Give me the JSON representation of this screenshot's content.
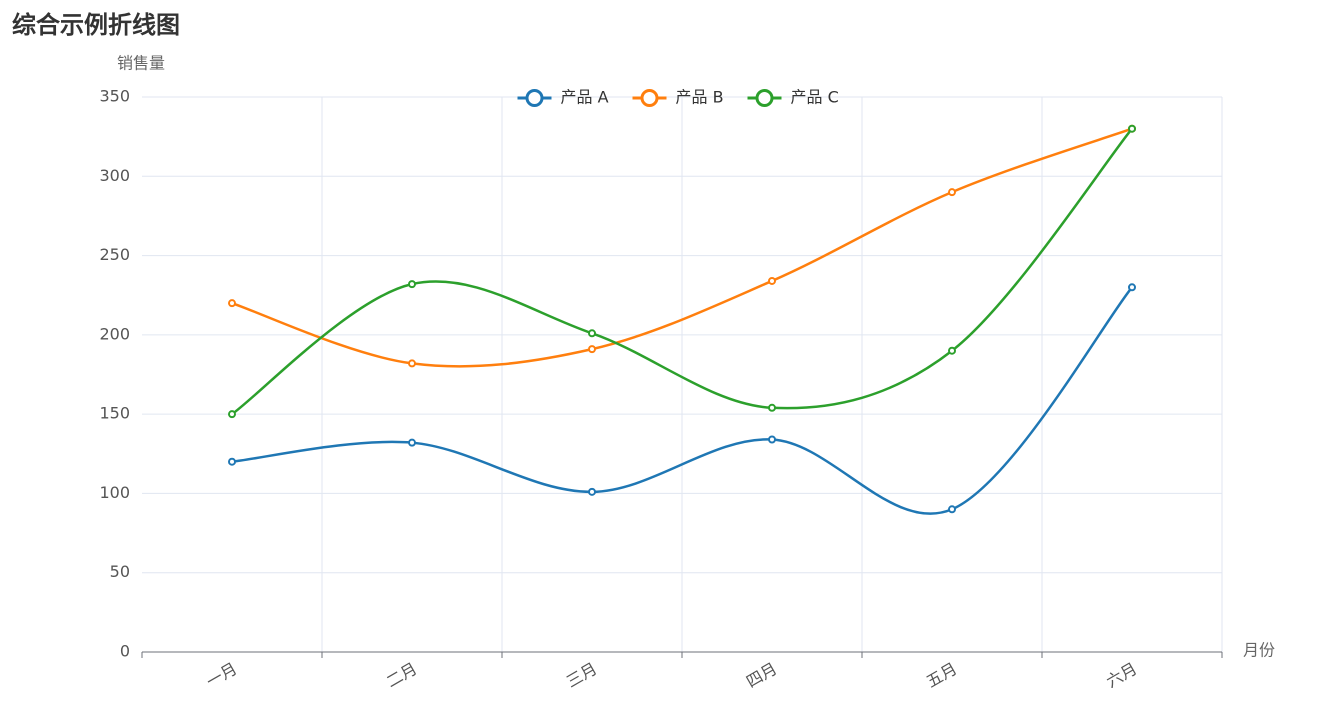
{
  "chart_data": {
    "type": "line",
    "title": "综合示例折线图",
    "y_axis_label": "销售量",
    "x_axis_label": "月份",
    "categories": [
      "一月",
      "二月",
      "三月",
      "四月",
      "五月",
      "六月"
    ],
    "series": [
      {
        "name": "产品 A",
        "color": "#1f77b4",
        "values": [
          120,
          132,
          101,
          134,
          90,
          230
        ]
      },
      {
        "name": "产品 B",
        "color": "#ff7f0e",
        "values": [
          220,
          182,
          191,
          234,
          290,
          330
        ]
      },
      {
        "name": "产品 C",
        "color": "#2ca02c",
        "values": [
          150,
          232,
          201,
          154,
          190,
          330
        ]
      }
    ],
    "ylim": [
      0,
      350
    ],
    "yticks": [
      0,
      50,
      100,
      150,
      200,
      250,
      300,
      350
    ],
    "grid": true,
    "smooth": true,
    "legend": "top"
  }
}
